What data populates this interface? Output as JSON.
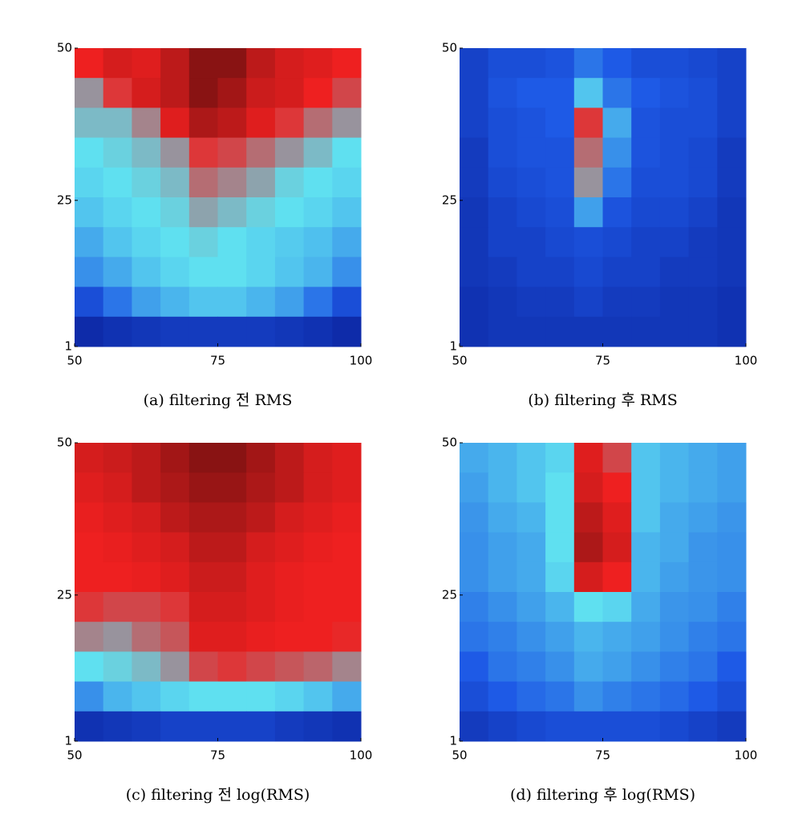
{
  "chart_data": [
    {
      "type": "heatmap",
      "caption": "(a) filtering 전 RMS",
      "xlim": [
        50,
        100
      ],
      "ylim": [
        1,
        50
      ],
      "xticks": [
        50,
        75,
        100
      ],
      "yticks": [
        1,
        25,
        50
      ],
      "colormap": [
        "#0a1f9a",
        "#1e5ae6",
        "#5fe0f0",
        "#ee2020",
        "#701010"
      ],
      "z": [
        [
          0.75,
          0.8,
          0.78,
          0.85,
          0.95,
          0.95,
          0.85,
          0.8,
          0.78,
          0.75
        ],
        [
          0.6,
          0.72,
          0.8,
          0.85,
          0.95,
          0.9,
          0.82,
          0.8,
          0.75,
          0.7
        ],
        [
          0.55,
          0.55,
          0.62,
          0.78,
          0.88,
          0.85,
          0.78,
          0.72,
          0.65,
          0.6
        ],
        [
          0.5,
          0.52,
          0.55,
          0.6,
          0.72,
          0.7,
          0.65,
          0.6,
          0.55,
          0.5
        ],
        [
          0.48,
          0.5,
          0.52,
          0.55,
          0.65,
          0.62,
          0.58,
          0.52,
          0.5,
          0.48
        ],
        [
          0.45,
          0.48,
          0.5,
          0.52,
          0.58,
          0.55,
          0.52,
          0.5,
          0.48,
          0.45
        ],
        [
          0.4,
          0.45,
          0.48,
          0.5,
          0.52,
          0.5,
          0.48,
          0.46,
          0.44,
          0.4
        ],
        [
          0.35,
          0.4,
          0.45,
          0.48,
          0.5,
          0.5,
          0.48,
          0.45,
          0.42,
          0.35
        ],
        [
          0.2,
          0.3,
          0.38,
          0.42,
          0.45,
          0.45,
          0.42,
          0.38,
          0.3,
          0.2
        ],
        [
          0.05,
          0.08,
          0.1,
          0.12,
          0.12,
          0.12,
          0.12,
          0.1,
          0.08,
          0.05
        ]
      ]
    },
    {
      "type": "heatmap",
      "caption": "(b) filtering 후 RMS",
      "xlim": [
        50,
        100
      ],
      "ylim": [
        1,
        50
      ],
      "xticks": [
        50,
        75,
        100
      ],
      "yticks": [
        1,
        25,
        50
      ],
      "colormap": [
        "#0a1f9a",
        "#1e5ae6",
        "#5fe0f0",
        "#ee2020",
        "#701010"
      ],
      "z": [
        [
          0.15,
          0.2,
          0.2,
          0.22,
          0.3,
          0.25,
          0.2,
          0.2,
          0.18,
          0.15
        ],
        [
          0.15,
          0.22,
          0.25,
          0.25,
          0.45,
          0.3,
          0.25,
          0.22,
          0.2,
          0.15
        ],
        [
          0.15,
          0.2,
          0.22,
          0.25,
          0.72,
          0.4,
          0.22,
          0.2,
          0.2,
          0.15
        ],
        [
          0.12,
          0.2,
          0.22,
          0.22,
          0.65,
          0.35,
          0.22,
          0.2,
          0.18,
          0.12
        ],
        [
          0.12,
          0.18,
          0.2,
          0.22,
          0.6,
          0.3,
          0.2,
          0.2,
          0.18,
          0.12
        ],
        [
          0.1,
          0.15,
          0.18,
          0.2,
          0.38,
          0.22,
          0.18,
          0.18,
          0.15,
          0.1
        ],
        [
          0.1,
          0.15,
          0.15,
          0.18,
          0.2,
          0.18,
          0.15,
          0.15,
          0.12,
          0.1
        ],
        [
          0.1,
          0.12,
          0.15,
          0.15,
          0.18,
          0.15,
          0.15,
          0.12,
          0.12,
          0.1
        ],
        [
          0.08,
          0.1,
          0.12,
          0.12,
          0.15,
          0.12,
          0.12,
          0.1,
          0.1,
          0.08
        ],
        [
          0.08,
          0.1,
          0.1,
          0.1,
          0.1,
          0.1,
          0.1,
          0.1,
          0.1,
          0.08
        ]
      ]
    },
    {
      "type": "heatmap",
      "caption": "(c) filtering 전 log(RMS)",
      "xlim": [
        50,
        100
      ],
      "ylim": [
        1,
        50
      ],
      "xticks": [
        50,
        75,
        100
      ],
      "yticks": [
        1,
        25,
        50
      ],
      "colormap": [
        "#0a1f9a",
        "#1e5ae6",
        "#5fe0f0",
        "#ee2020",
        "#701010"
      ],
      "z": [
        [
          0.8,
          0.82,
          0.85,
          0.9,
          0.95,
          0.95,
          0.9,
          0.85,
          0.8,
          0.78
        ],
        [
          0.78,
          0.8,
          0.85,
          0.88,
          0.92,
          0.92,
          0.88,
          0.85,
          0.8,
          0.78
        ],
        [
          0.76,
          0.78,
          0.8,
          0.85,
          0.88,
          0.88,
          0.85,
          0.8,
          0.78,
          0.76
        ],
        [
          0.75,
          0.76,
          0.78,
          0.8,
          0.85,
          0.85,
          0.8,
          0.78,
          0.76,
          0.75
        ],
        [
          0.75,
          0.75,
          0.76,
          0.78,
          0.82,
          0.82,
          0.78,
          0.76,
          0.75,
          0.75
        ],
        [
          0.72,
          0.7,
          0.7,
          0.72,
          0.8,
          0.8,
          0.78,
          0.76,
          0.75,
          0.75
        ],
        [
          0.62,
          0.6,
          0.65,
          0.68,
          0.78,
          0.78,
          0.76,
          0.75,
          0.75,
          0.74
        ],
        [
          0.5,
          0.52,
          0.55,
          0.6,
          0.7,
          0.72,
          0.7,
          0.68,
          0.66,
          0.62
        ],
        [
          0.35,
          0.42,
          0.45,
          0.48,
          0.5,
          0.5,
          0.5,
          0.48,
          0.45,
          0.4
        ],
        [
          0.08,
          0.1,
          0.12,
          0.15,
          0.15,
          0.15,
          0.15,
          0.12,
          0.1,
          0.08
        ]
      ]
    },
    {
      "type": "heatmap",
      "caption": "(d) filtering 후 log(RMS)",
      "xlim": [
        50,
        100
      ],
      "ylim": [
        1,
        50
      ],
      "xticks": [
        50,
        75,
        100
      ],
      "yticks": [
        1,
        25,
        50
      ],
      "colormap": [
        "#0a1f9a",
        "#1e5ae6",
        "#5fe0f0",
        "#ee2020",
        "#701010"
      ],
      "z": [
        [
          0.4,
          0.42,
          0.45,
          0.48,
          0.78,
          0.7,
          0.45,
          0.42,
          0.4,
          0.38
        ],
        [
          0.38,
          0.42,
          0.45,
          0.5,
          0.8,
          0.75,
          0.45,
          0.42,
          0.4,
          0.38
        ],
        [
          0.36,
          0.4,
          0.42,
          0.5,
          0.85,
          0.78,
          0.45,
          0.4,
          0.38,
          0.36
        ],
        [
          0.35,
          0.38,
          0.4,
          0.5,
          0.88,
          0.8,
          0.42,
          0.4,
          0.36,
          0.35
        ],
        [
          0.35,
          0.38,
          0.4,
          0.48,
          0.8,
          0.75,
          0.42,
          0.38,
          0.36,
          0.35
        ],
        [
          0.32,
          0.35,
          0.38,
          0.42,
          0.5,
          0.48,
          0.4,
          0.36,
          0.35,
          0.32
        ],
        [
          0.3,
          0.32,
          0.35,
          0.38,
          0.42,
          0.4,
          0.38,
          0.35,
          0.32,
          0.3
        ],
        [
          0.25,
          0.3,
          0.32,
          0.35,
          0.4,
          0.38,
          0.35,
          0.32,
          0.3,
          0.25
        ],
        [
          0.2,
          0.25,
          0.28,
          0.3,
          0.35,
          0.32,
          0.3,
          0.28,
          0.25,
          0.2
        ],
        [
          0.12,
          0.15,
          0.18,
          0.2,
          0.2,
          0.2,
          0.2,
          0.18,
          0.15,
          0.12
        ]
      ]
    }
  ]
}
